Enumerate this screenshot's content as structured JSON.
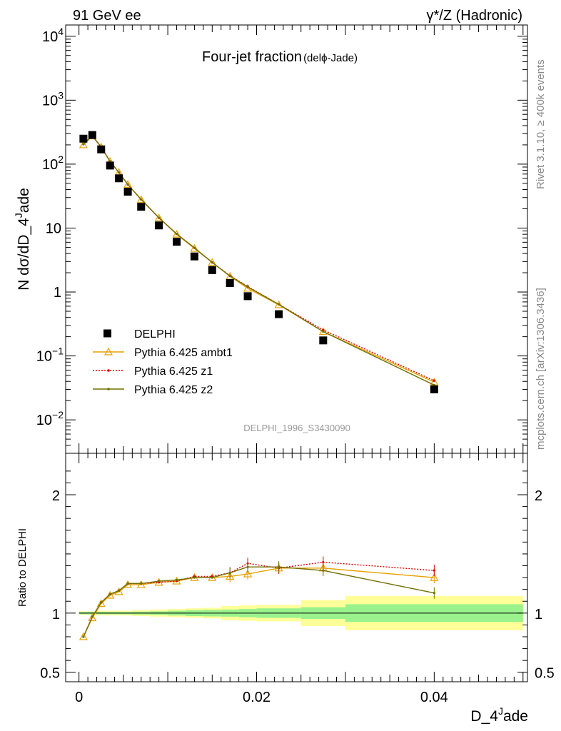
{
  "header": {
    "left": "91 GeV ee",
    "right": "γ*/Z (Hadronic)"
  },
  "side_labels": {
    "rivet": "Rivet 3.1.10, ≥ 400k events",
    "mcplots": "mcplots.cern.ch [arXiv:1306.3436]"
  },
  "chart_data": [
    {
      "type": "scatter",
      "title_main": "Four-jet fraction",
      "title_sub": "(delϕ-Jade)",
      "ylabel": "N dσ/dD_4^Jade",
      "ylabel_parts": {
        "main": "N dσ/dD_4",
        "sup": "J",
        "tail": "ade"
      },
      "yscale": "log",
      "ylim": [
        0.003,
        15000
      ],
      "xlim": [
        -0.0015,
        0.0505
      ],
      "yticks": [
        {
          "value": 0.01,
          "base": "10",
          "exp": "−2"
        },
        {
          "value": 0.1,
          "base": "10",
          "exp": "−1"
        },
        {
          "value": 1,
          "base": "1",
          "exp": ""
        },
        {
          "value": 10,
          "base": "10",
          "exp": ""
        },
        {
          "value": 100,
          "base": "10",
          "exp": "2"
        },
        {
          "value": 1000,
          "base": "10",
          "exp": "3"
        },
        {
          "value": 10000,
          "base": "10",
          "exp": "4"
        }
      ],
      "watermark": "DELPHI_1996_S3430090",
      "legend_position": "bottom-left",
      "series": [
        {
          "name": "DELPHI",
          "style": "data",
          "color": "#000000",
          "x": [
            0.0005,
            0.0015,
            0.0025,
            0.0035,
            0.0045,
            0.0055,
            0.007,
            0.009,
            0.011,
            0.013,
            0.015,
            0.017,
            0.019,
            0.0225,
            0.0275,
            0.04
          ],
          "y": [
            250,
            285,
            170,
            95,
            60,
            37,
            21.5,
            11,
            6.1,
            3.6,
            2.2,
            1.38,
            0.86,
            0.45,
            0.175,
            0.03
          ]
        },
        {
          "name": "Pythia 6.425 ambt1",
          "style": "triangle",
          "color": "#e8a000",
          "x": [
            0.0005,
            0.0015,
            0.0025,
            0.0035,
            0.0045,
            0.0055,
            0.007,
            0.009,
            0.011,
            0.013,
            0.015,
            0.017,
            0.019,
            0.0225,
            0.0275,
            0.04
          ],
          "y": [
            200,
            275,
            184,
            110,
            74,
            48,
            27.9,
            14.4,
            8.0,
            4.8,
            2.9,
            1.76,
            1.14,
            0.63,
            0.24,
            0.039
          ]
        },
        {
          "name": "Pythia 6.425 z1",
          "style": "dotted",
          "color": "#dd0000",
          "x": [
            0.0005,
            0.0015,
            0.0025,
            0.0035,
            0.0045,
            0.0055,
            0.007,
            0.009,
            0.011,
            0.013,
            0.015,
            0.017,
            0.019,
            0.0225,
            0.0275,
            0.04
          ],
          "y": [
            205,
            278,
            186,
            111,
            74,
            48,
            28.0,
            14.4,
            8.1,
            4.9,
            2.9,
            1.8,
            1.22,
            0.64,
            0.255,
            0.041
          ]
        },
        {
          "name": "Pythia 6.425 z2",
          "style": "solid",
          "color": "#707000",
          "x": [
            0.0005,
            0.0015,
            0.0025,
            0.0035,
            0.0045,
            0.0055,
            0.007,
            0.009,
            0.011,
            0.013,
            0.015,
            0.017,
            0.019,
            0.0225,
            0.0275,
            0.04
          ],
          "y": [
            205,
            276,
            185,
            110,
            74,
            48,
            28.0,
            14.5,
            8.1,
            4.9,
            2.9,
            1.78,
            1.2,
            0.64,
            0.24,
            0.035
          ]
        }
      ]
    },
    {
      "type": "line",
      "ylabel": "Ratio to DELPHI",
      "xlabel": "D_4^Jade",
      "xlabel_parts": {
        "main": "D_4",
        "sup": "J",
        "tail": "ade"
      },
      "ylim": [
        0.42,
        2.35
      ],
      "xlim": [
        -0.0015,
        0.0505
      ],
      "yticks": [
        {
          "value": 0.5,
          "label": "0.5"
        },
        {
          "value": 1,
          "label": "1"
        },
        {
          "value": 2,
          "label": "2"
        }
      ],
      "xticks": [
        {
          "value": 0,
          "label": "0"
        },
        {
          "value": 0.02,
          "label": "0.02"
        },
        {
          "value": 0.04,
          "label": "0.04"
        }
      ],
      "bands": [
        {
          "x0": 0.0,
          "x1": 0.002,
          "inner": 0.01,
          "outer": 0.015
        },
        {
          "x0": 0.002,
          "x1": 0.004,
          "inner": 0.01,
          "outer": 0.02
        },
        {
          "x0": 0.004,
          "x1": 0.006,
          "inner": 0.01,
          "outer": 0.02
        },
        {
          "x0": 0.006,
          "x1": 0.008,
          "inner": 0.012,
          "outer": 0.025
        },
        {
          "x0": 0.008,
          "x1": 0.01,
          "inner": 0.015,
          "outer": 0.03
        },
        {
          "x0": 0.01,
          "x1": 0.012,
          "inner": 0.02,
          "outer": 0.035
        },
        {
          "x0": 0.012,
          "x1": 0.014,
          "inner": 0.025,
          "outer": 0.04
        },
        {
          "x0": 0.014,
          "x1": 0.016,
          "inner": 0.028,
          "outer": 0.045
        },
        {
          "x0": 0.016,
          "x1": 0.018,
          "inner": 0.03,
          "outer": 0.06
        },
        {
          "x0": 0.018,
          "x1": 0.02,
          "inner": 0.035,
          "outer": 0.065
        },
        {
          "x0": 0.02,
          "x1": 0.025,
          "inner": 0.04,
          "outer": 0.07
        },
        {
          "x0": 0.025,
          "x1": 0.03,
          "inner": 0.05,
          "outer": 0.11
        },
        {
          "x0": 0.03,
          "x1": 0.05,
          "inner": 0.075,
          "outer": 0.145
        }
      ],
      "series": [
        {
          "name": "Pythia 6.425 ambt1",
          "style": "triangle",
          "color": "#e8a000",
          "x": [
            0.0005,
            0.0015,
            0.0025,
            0.0035,
            0.0045,
            0.0055,
            0.007,
            0.009,
            0.011,
            0.013,
            0.015,
            0.017,
            0.019,
            0.0225,
            0.0275,
            0.04
          ],
          "y": [
            0.8,
            0.96,
            1.08,
            1.15,
            1.18,
            1.24,
            1.24,
            1.26,
            1.27,
            1.3,
            1.3,
            1.31,
            1.33,
            1.38,
            1.38,
            1.3
          ]
        },
        {
          "name": "Pythia 6.425 z1",
          "style": "dotted",
          "color": "#dd0000",
          "x": [
            0.0005,
            0.0015,
            0.0025,
            0.0035,
            0.0045,
            0.0055,
            0.007,
            0.009,
            0.011,
            0.013,
            0.015,
            0.017,
            0.019,
            0.0225,
            0.0275,
            0.04
          ],
          "y": [
            0.8,
            0.97,
            1.09,
            1.16,
            1.19,
            1.25,
            1.25,
            1.26,
            1.27,
            1.31,
            1.31,
            1.34,
            1.42,
            1.38,
            1.43,
            1.36
          ]
        },
        {
          "name": "Pythia 6.425 z2",
          "style": "solid",
          "color": "#707000",
          "x": [
            0.0005,
            0.0015,
            0.0025,
            0.0035,
            0.0045,
            0.0055,
            0.007,
            0.009,
            0.011,
            0.013,
            0.015,
            0.017,
            0.019,
            0.0225,
            0.0275,
            0.04
          ],
          "y": [
            0.8,
            0.97,
            1.09,
            1.16,
            1.19,
            1.25,
            1.25,
            1.27,
            1.28,
            1.3,
            1.3,
            1.34,
            1.39,
            1.39,
            1.36,
            1.17
          ]
        }
      ]
    }
  ]
}
